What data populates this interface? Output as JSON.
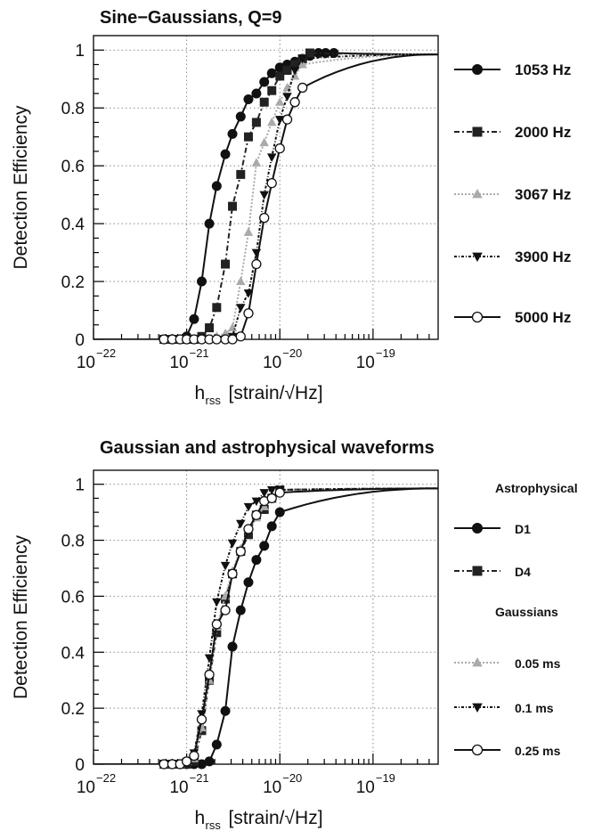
{
  "chart_data": [
    {
      "type": "line",
      "title": "Sine−Gaussians, Q=9",
      "ylabel": "Detection Efficiency",
      "xlabel": "h",
      "xlabel_sub": "rss",
      "xlabel_unit": "[strain/√Hz]",
      "x_scale": "log",
      "xlim": [
        1e-22,
        5e-19
      ],
      "ylim": [
        0,
        1.05
      ],
      "y_ticks": [
        "0",
        "0.2",
        "0.4",
        "0.6",
        "0.8",
        "1"
      ],
      "x_tick_base": "10",
      "x_tick_exponents": [
        "−22",
        "−21",
        "−20",
        "−19"
      ],
      "grid": true,
      "legend_position": "right",
      "series": [
        {
          "name": "1053 Hz",
          "color": "#111111",
          "dash": "solid",
          "marker": "filled-circle",
          "x": [
            5.7e-22,
            7e-22,
            8.5e-22,
            1e-21,
            1.2e-21,
            1.45e-21,
            1.75e-21,
            2.1e-21,
            2.6e-21,
            3.1e-21,
            3.8e-21,
            4.6e-21,
            5.6e-21,
            6.8e-21,
            8.2e-21,
            1e-20,
            1.2e-20,
            1.45e-20,
            1.75e-20,
            2.1e-20,
            2.6e-20,
            3.1e-20,
            3.8e-20
          ],
          "y": [
            0,
            0,
            0,
            0.01,
            0.07,
            0.2,
            0.4,
            0.53,
            0.64,
            0.71,
            0.77,
            0.83,
            0.85,
            0.89,
            0.92,
            0.94,
            0.95,
            0.96,
            0.97,
            0.98,
            0.99,
            0.99,
            0.99
          ]
        },
        {
          "name": "2000 Hz",
          "color": "#222222",
          "dash": "6 3 2 3",
          "marker": "filled-square",
          "x": [
            5.7e-22,
            7e-22,
            8.5e-22,
            1e-21,
            1.2e-21,
            1.45e-21,
            1.75e-21,
            2.1e-21,
            2.6e-21,
            3.1e-21,
            3.8e-21,
            4.6e-21,
            5.6e-21,
            6.8e-21,
            8.2e-21,
            1e-20,
            1.2e-20,
            1.45e-20,
            1.75e-20,
            2.1e-20
          ],
          "y": [
            0,
            0,
            0,
            0,
            0,
            0.01,
            0.04,
            0.11,
            0.26,
            0.46,
            0.57,
            0.7,
            0.75,
            0.82,
            0.86,
            0.91,
            0.93,
            0.95,
            0.97,
            0.99
          ]
        },
        {
          "name": "3067 Hz",
          "color": "#aaaaaa",
          "dash": "2 2",
          "marker": "filled-triangle-up",
          "x": [
            5.7e-22,
            7e-22,
            8.5e-22,
            1e-21,
            1.2e-21,
            1.45e-21,
            1.75e-21,
            2.1e-21,
            2.6e-21,
            3.1e-21,
            3.8e-21,
            4.6e-21,
            5.6e-21,
            6.8e-21,
            8.2e-21,
            1e-20,
            1.2e-20,
            1.45e-20,
            1.75e-20
          ],
          "y": [
            0,
            0,
            0,
            0,
            0,
            0,
            0,
            0.01,
            0.02,
            0.04,
            0.2,
            0.37,
            0.61,
            0.68,
            0.75,
            0.82,
            0.87,
            0.91,
            0.95
          ]
        },
        {
          "name": "3900 Hz",
          "color": "#111111",
          "dash": "3 2 1 2",
          "marker": "filled-triangle-down",
          "x": [
            5.7e-22,
            7e-22,
            8.5e-22,
            1e-21,
            1.2e-21,
            1.45e-21,
            1.75e-21,
            2.1e-21,
            2.6e-21,
            3.1e-21,
            3.8e-21,
            4.6e-21,
            5.6e-21,
            6.8e-21,
            8.2e-21,
            1e-20,
            1.2e-20,
            1.45e-20,
            1.75e-20
          ],
          "y": [
            0,
            0,
            0,
            0,
            0,
            0,
            0,
            0,
            0,
            0.01,
            0.11,
            0.16,
            0.3,
            0.5,
            0.63,
            0.76,
            0.84,
            0.93,
            0.97
          ]
        },
        {
          "name": "5000 Hz",
          "color": "#111111",
          "dash": "solid",
          "marker": "open-circle",
          "x": [
            5.7e-22,
            7e-22,
            8.5e-22,
            1e-21,
            1.2e-21,
            1.45e-21,
            1.75e-21,
            2.1e-21,
            2.6e-21,
            3.1e-21,
            3.8e-21,
            4.6e-21,
            5.6e-21,
            6.8e-21,
            8.2e-21,
            1e-20,
            1.2e-20,
            1.45e-20,
            1.75e-20
          ],
          "y": [
            0,
            0,
            0,
            0,
            0,
            0,
            0,
            0,
            0,
            0,
            0.01,
            0.09,
            0.26,
            0.42,
            0.54,
            0.66,
            0.76,
            0.82,
            0.87
          ]
        }
      ]
    },
    {
      "type": "line",
      "title": "Gaussian and astrophysical waveforms",
      "ylabel": "Detection Efficiency",
      "xlabel": "h",
      "xlabel_sub": "rss",
      "xlabel_unit": "[strain/√Hz]",
      "x_scale": "log",
      "xlim": [
        1e-22,
        5e-19
      ],
      "ylim": [
        0,
        1.05
      ],
      "y_ticks": [
        "0",
        "0.2",
        "0.4",
        "0.6",
        "0.8",
        "1"
      ],
      "x_tick_base": "10",
      "x_tick_exponents": [
        "−22",
        "−21",
        "−20",
        "−19"
      ],
      "grid": true,
      "legend_position": "right",
      "legend_headers": [
        "Astrophysical",
        "Gaussians"
      ],
      "series": [
        {
          "name": "D1",
          "color": "#111111",
          "dash": "solid",
          "marker": "filled-circle",
          "x": [
            5.7e-22,
            7e-22,
            8.5e-22,
            1e-21,
            1.2e-21,
            1.45e-21,
            1.75e-21,
            2.1e-21,
            2.6e-21,
            3.1e-21,
            3.8e-21,
            4.6e-21,
            5.6e-21,
            6.8e-21,
            8.2e-21,
            1e-20
          ],
          "y": [
            0,
            0,
            0,
            0,
            0,
            0,
            0.01,
            0.07,
            0.19,
            0.42,
            0.55,
            0.65,
            0.73,
            0.78,
            0.85,
            0.9
          ]
        },
        {
          "name": "D4",
          "color": "#222222",
          "dash": "6 3 2 3",
          "marker": "filled-square",
          "x": [
            5.7e-22,
            7e-22,
            8.5e-22,
            1e-21,
            1.2e-21,
            1.45e-21,
            1.75e-21,
            2.1e-21,
            2.6e-21,
            3.1e-21,
            3.8e-21,
            4.6e-21,
            5.6e-21,
            6.8e-21,
            8.2e-21,
            1e-20
          ],
          "y": [
            0,
            0,
            0,
            0,
            0.01,
            0.12,
            0.3,
            0.47,
            0.59,
            0.68,
            0.76,
            0.82,
            0.89,
            0.91,
            0.95,
            0.98
          ]
        },
        {
          "name": "0.05 ms",
          "color": "#aaaaaa",
          "dash": "2 2",
          "marker": "filled-triangle-up",
          "x": [
            5.7e-22,
            7e-22,
            8.5e-22,
            1e-21,
            1.2e-21,
            1.45e-21,
            1.75e-21,
            2.1e-21,
            2.6e-21,
            3.1e-21,
            3.8e-21,
            4.6e-21,
            5.6e-21,
            6.8e-21,
            8.2e-21,
            1e-20
          ],
          "y": [
            0,
            0,
            0,
            0.01,
            0.02,
            0.13,
            0.3,
            0.49,
            0.6,
            0.69,
            0.77,
            0.84,
            0.88,
            0.92,
            0.95,
            0.98
          ]
        },
        {
          "name": "0.1 ms",
          "color": "#111111",
          "dash": "3 2 1 2",
          "marker": "filled-triangle-down",
          "x": [
            5.7e-22,
            7e-22,
            8.5e-22,
            1e-21,
            1.2e-21,
            1.45e-21,
            1.75e-21,
            2.1e-21,
            2.6e-21,
            3.1e-21,
            3.8e-21,
            4.6e-21,
            5.6e-21,
            6.8e-21,
            8.2e-21,
            1e-20
          ],
          "y": [
            0,
            0,
            0,
            0.01,
            0.04,
            0.18,
            0.38,
            0.58,
            0.71,
            0.79,
            0.86,
            0.92,
            0.94,
            0.97,
            0.98,
            0.98
          ]
        },
        {
          "name": "0.25 ms",
          "color": "#111111",
          "dash": "solid",
          "marker": "open-circle",
          "x": [
            5.7e-22,
            7e-22,
            8.5e-22,
            1e-21,
            1.2e-21,
            1.45e-21,
            1.75e-21,
            2.1e-21,
            2.6e-21,
            3.1e-21,
            3.8e-21,
            4.6e-21,
            5.6e-21,
            6.8e-21,
            8.2e-21,
            1e-20
          ],
          "y": [
            0,
            0,
            0,
            0.01,
            0.03,
            0.16,
            0.32,
            0.5,
            0.55,
            0.68,
            0.76,
            0.84,
            0.89,
            0.94,
            0.95,
            0.97
          ]
        }
      ]
    }
  ]
}
